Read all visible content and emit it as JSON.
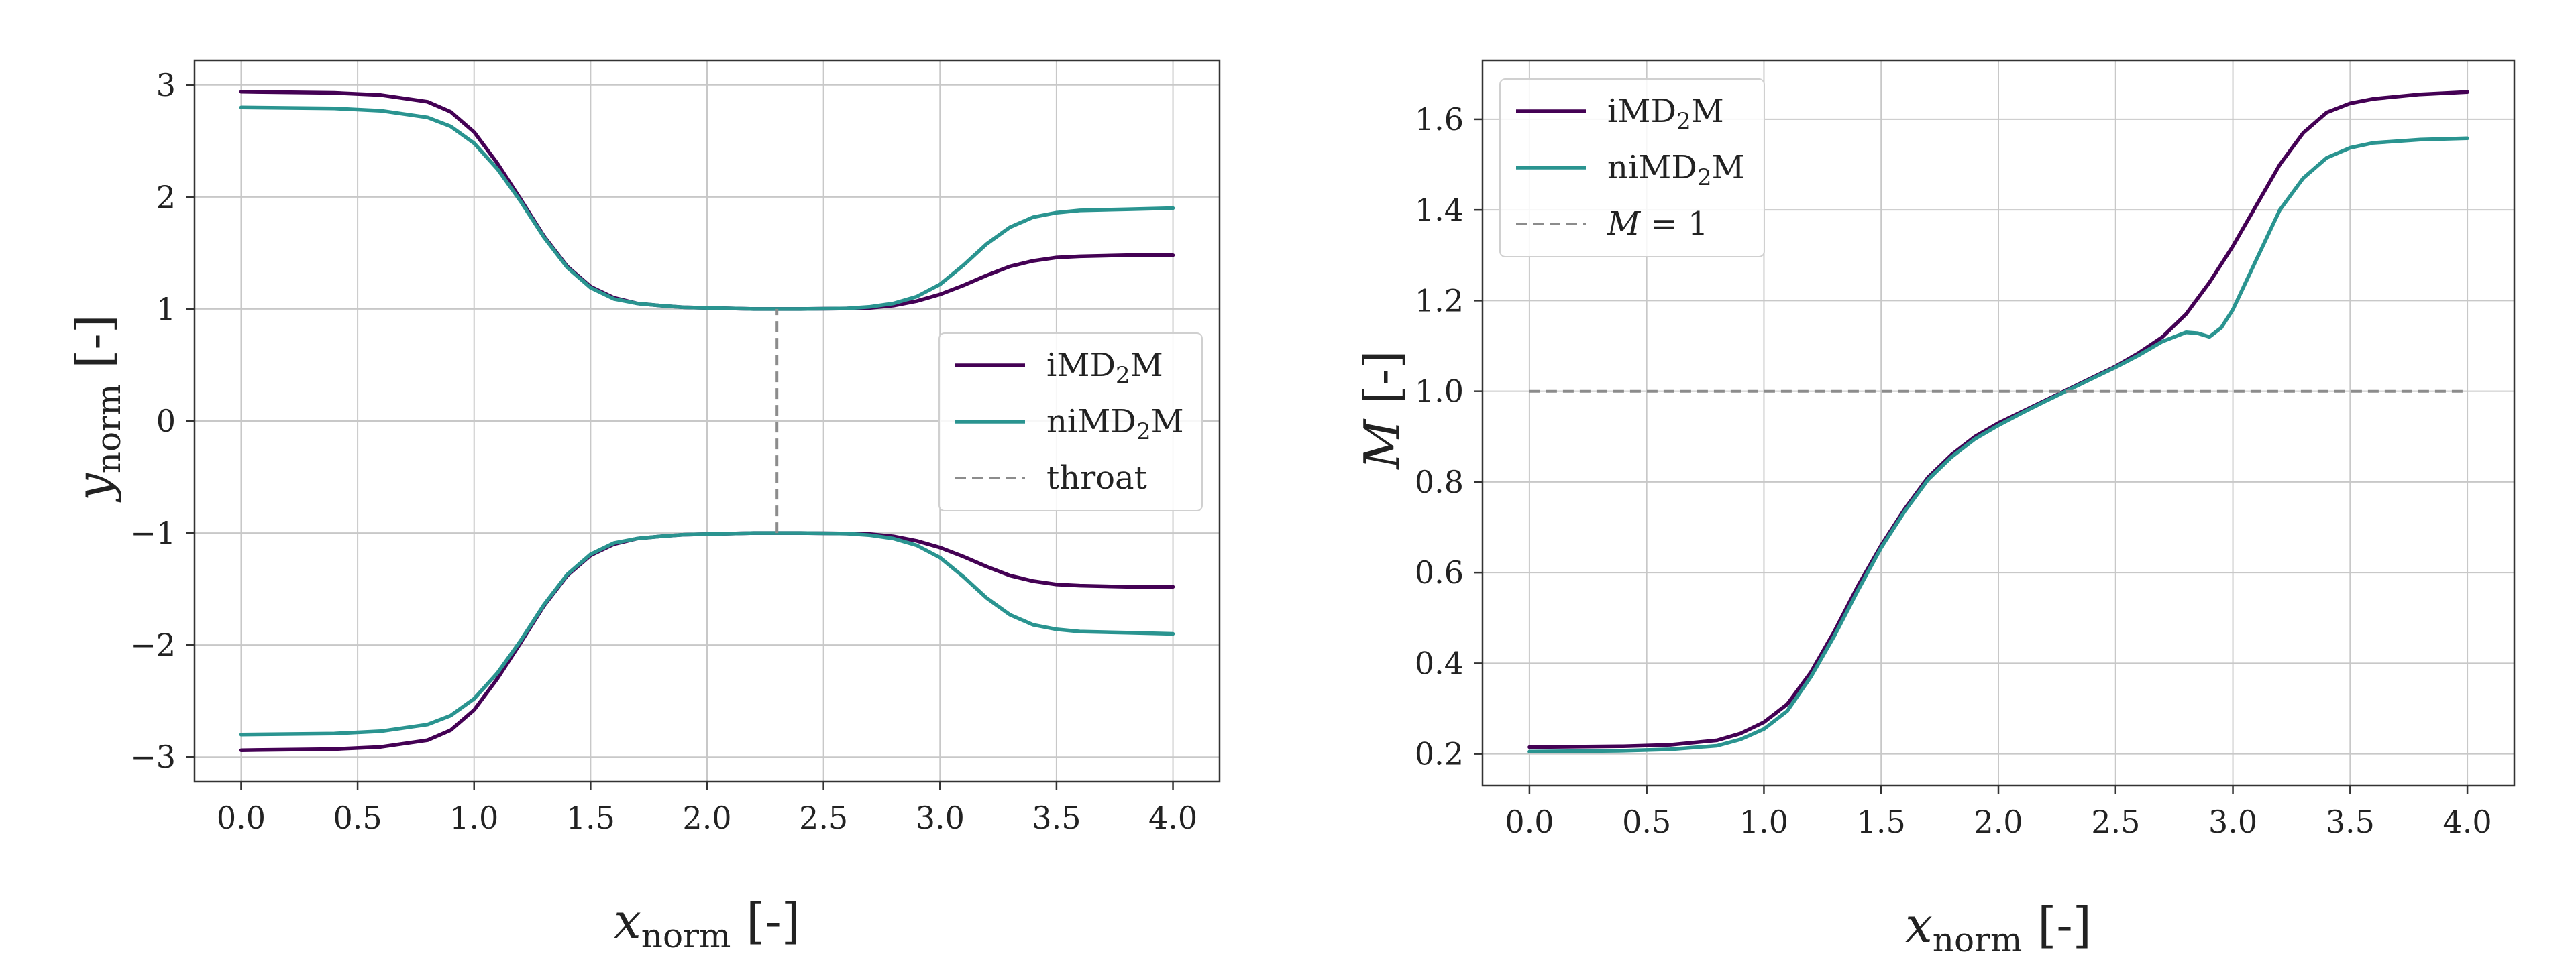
{
  "colors": {
    "imd2m": "#440154",
    "nimd2m": "#2a9490",
    "reference": "#8c8c8c",
    "grid": "#c8c8c8"
  },
  "chart_data": [
    {
      "type": "line",
      "xlabel": {
        "main": "x",
        "sub": "norm",
        "unit": "[-]"
      },
      "ylabel": {
        "main": "y",
        "sub": "norm",
        "unit": "[-]"
      },
      "xlim": [
        -0.2,
        4.2
      ],
      "ylim": [
        -3.22,
        3.22
      ],
      "xticks": [
        0.0,
        0.5,
        1.0,
        1.5,
        2.0,
        2.5,
        3.0,
        3.5,
        4.0
      ],
      "xtick_labels": [
        "0.0",
        "0.5",
        "1.0",
        "1.5",
        "2.0",
        "2.5",
        "3.0",
        "3.5",
        "4.0"
      ],
      "yticks": [
        -3,
        -2,
        -1,
        0,
        1,
        2,
        3
      ],
      "ytick_labels": [
        "−3",
        "−2",
        "−1",
        "0",
        "1",
        "2",
        "3"
      ],
      "grid": true,
      "legend_position": "center-right",
      "series": [
        {
          "name": "iMD2M",
          "label_main": "iMD",
          "label_sub": "2",
          "label_tail": "M",
          "color_key": "imd2m",
          "style": "solid",
          "x": [
            0.0,
            0.4,
            0.6,
            0.8,
            0.9,
            1.0,
            1.1,
            1.2,
            1.3,
            1.4,
            1.5,
            1.6,
            1.7,
            1.8,
            1.9,
            2.0,
            2.2,
            2.4,
            2.6,
            2.7,
            2.8,
            2.9,
            3.0,
            3.1,
            3.2,
            3.3,
            3.4,
            3.5,
            3.6,
            3.8,
            4.0
          ],
          "y": [
            2.94,
            2.93,
            2.91,
            2.85,
            2.76,
            2.58,
            2.3,
            1.98,
            1.65,
            1.38,
            1.2,
            1.1,
            1.05,
            1.03,
            1.015,
            1.01,
            1.0,
            1.0,
            1.005,
            1.01,
            1.03,
            1.07,
            1.13,
            1.21,
            1.3,
            1.38,
            1.43,
            1.46,
            1.47,
            1.48,
            1.48
          ]
        },
        {
          "name": "iMD2M",
          "label_main": "iMD",
          "label_sub": "2",
          "label_tail": "M",
          "color_key": "imd2m",
          "style": "solid",
          "x": [
            0.0,
            0.4,
            0.6,
            0.8,
            0.9,
            1.0,
            1.1,
            1.2,
            1.3,
            1.4,
            1.5,
            1.6,
            1.7,
            1.8,
            1.9,
            2.0,
            2.2,
            2.4,
            2.6,
            2.7,
            2.8,
            2.9,
            3.0,
            3.1,
            3.2,
            3.3,
            3.4,
            3.5,
            3.6,
            3.8,
            4.0
          ],
          "y": [
            -2.94,
            -2.93,
            -2.91,
            -2.85,
            -2.76,
            -2.58,
            -2.3,
            -1.98,
            -1.65,
            -1.38,
            -1.2,
            -1.1,
            -1.05,
            -1.03,
            -1.015,
            -1.01,
            -1.0,
            -1.0,
            -1.005,
            -1.01,
            -1.03,
            -1.07,
            -1.13,
            -1.21,
            -1.3,
            -1.38,
            -1.43,
            -1.46,
            -1.47,
            -1.48,
            -1.48
          ]
        },
        {
          "name": "niMD2M",
          "label_main": "niMD",
          "label_sub": "2",
          "label_tail": "M",
          "color_key": "nimd2m",
          "style": "solid",
          "x": [
            0.0,
            0.4,
            0.6,
            0.8,
            0.9,
            1.0,
            1.1,
            1.2,
            1.3,
            1.4,
            1.5,
            1.6,
            1.7,
            1.8,
            1.9,
            2.0,
            2.2,
            2.4,
            2.6,
            2.7,
            2.8,
            2.9,
            3.0,
            3.1,
            3.2,
            3.3,
            3.4,
            3.5,
            3.6,
            3.8,
            4.0
          ],
          "y": [
            2.8,
            2.79,
            2.77,
            2.71,
            2.63,
            2.48,
            2.25,
            1.96,
            1.64,
            1.37,
            1.19,
            1.09,
            1.05,
            1.03,
            1.015,
            1.01,
            1.0,
            1.0,
            1.005,
            1.02,
            1.05,
            1.11,
            1.22,
            1.39,
            1.58,
            1.73,
            1.82,
            1.86,
            1.88,
            1.89,
            1.9
          ]
        },
        {
          "name": "niMD2M",
          "label_main": "niMD",
          "label_sub": "2",
          "label_tail": "M",
          "color_key": "nimd2m",
          "style": "solid",
          "x": [
            0.0,
            0.4,
            0.6,
            0.8,
            0.9,
            1.0,
            1.1,
            1.2,
            1.3,
            1.4,
            1.5,
            1.6,
            1.7,
            1.8,
            1.9,
            2.0,
            2.2,
            2.4,
            2.6,
            2.7,
            2.8,
            2.9,
            3.0,
            3.1,
            3.2,
            3.3,
            3.4,
            3.5,
            3.6,
            3.8,
            4.0
          ],
          "y": [
            -2.8,
            -2.79,
            -2.77,
            -2.71,
            -2.63,
            -2.48,
            -2.25,
            -1.96,
            -1.64,
            -1.37,
            -1.19,
            -1.09,
            -1.05,
            -1.03,
            -1.015,
            -1.01,
            -1.0,
            -1.0,
            -1.005,
            -1.02,
            -1.05,
            -1.11,
            -1.22,
            -1.39,
            -1.58,
            -1.73,
            -1.82,
            -1.86,
            -1.88,
            -1.89,
            -1.9
          ]
        },
        {
          "name": "throat",
          "label_main": "throat",
          "label_sub": "",
          "label_tail": "",
          "color_key": "reference",
          "style": "dashed",
          "x": [
            2.3,
            2.3
          ],
          "y": [
            -1.0,
            1.0
          ]
        }
      ]
    },
    {
      "type": "line",
      "xlabel": {
        "main": "x",
        "sub": "norm",
        "unit": "[-]"
      },
      "ylabel": {
        "main": "M",
        "sub": "",
        "unit": "[-]"
      },
      "xlim": [
        -0.2,
        4.2
      ],
      "ylim": [
        0.13,
        1.73
      ],
      "xticks": [
        0.0,
        0.5,
        1.0,
        1.5,
        2.0,
        2.5,
        3.0,
        3.5,
        4.0
      ],
      "xtick_labels": [
        "0.0",
        "0.5",
        "1.0",
        "1.5",
        "2.0",
        "2.5",
        "3.0",
        "3.5",
        "4.0"
      ],
      "yticks": [
        0.2,
        0.4,
        0.6,
        0.8,
        1.0,
        1.2,
        1.4,
        1.6
      ],
      "ytick_labels": [
        "0.2",
        "0.4",
        "0.6",
        "0.8",
        "1.0",
        "1.2",
        "1.4",
        "1.6"
      ],
      "grid": true,
      "legend_position": "top-left",
      "series": [
        {
          "name": "iMD2M",
          "label_main": "iMD",
          "label_sub": "2",
          "label_tail": "M",
          "color_key": "imd2m",
          "style": "solid",
          "x": [
            0.0,
            0.4,
            0.6,
            0.8,
            0.9,
            1.0,
            1.1,
            1.2,
            1.3,
            1.4,
            1.5,
            1.6,
            1.7,
            1.8,
            1.9,
            2.0,
            2.1,
            2.2,
            2.3,
            2.4,
            2.5,
            2.6,
            2.7,
            2.8,
            2.9,
            3.0,
            3.1,
            3.2,
            3.3,
            3.4,
            3.5,
            3.6,
            3.8,
            4.0
          ],
          "y": [
            0.215,
            0.217,
            0.22,
            0.23,
            0.245,
            0.27,
            0.31,
            0.38,
            0.47,
            0.57,
            0.66,
            0.74,
            0.81,
            0.86,
            0.9,
            0.93,
            0.955,
            0.98,
            1.005,
            1.03,
            1.055,
            1.085,
            1.12,
            1.17,
            1.24,
            1.32,
            1.41,
            1.5,
            1.57,
            1.615,
            1.635,
            1.645,
            1.655,
            1.66
          ]
        },
        {
          "name": "niMD2M",
          "label_main": "niMD",
          "label_sub": "2",
          "label_tail": "M",
          "color_key": "nimd2m",
          "style": "solid",
          "x": [
            0.0,
            0.4,
            0.6,
            0.8,
            0.9,
            1.0,
            1.1,
            1.2,
            1.3,
            1.4,
            1.5,
            1.6,
            1.7,
            1.8,
            1.9,
            2.0,
            2.1,
            2.2,
            2.3,
            2.4,
            2.5,
            2.6,
            2.7,
            2.8,
            2.85,
            2.9,
            2.95,
            3.0,
            3.1,
            3.2,
            3.3,
            3.4,
            3.5,
            3.6,
            3.8,
            4.0
          ],
          "y": [
            0.205,
            0.207,
            0.21,
            0.218,
            0.232,
            0.255,
            0.295,
            0.37,
            0.46,
            0.56,
            0.655,
            0.735,
            0.805,
            0.855,
            0.895,
            0.925,
            0.952,
            0.978,
            1.003,
            1.028,
            1.053,
            1.08,
            1.11,
            1.13,
            1.128,
            1.12,
            1.14,
            1.18,
            1.29,
            1.4,
            1.47,
            1.515,
            1.537,
            1.548,
            1.555,
            1.558
          ]
        },
        {
          "name": "M = 1",
          "label_main": "M = 1",
          "label_sub": "",
          "label_tail": "",
          "color_key": "reference",
          "style": "dashed",
          "x": [
            0.0,
            4.0
          ],
          "y": [
            1.0,
            1.0
          ]
        }
      ]
    }
  ]
}
